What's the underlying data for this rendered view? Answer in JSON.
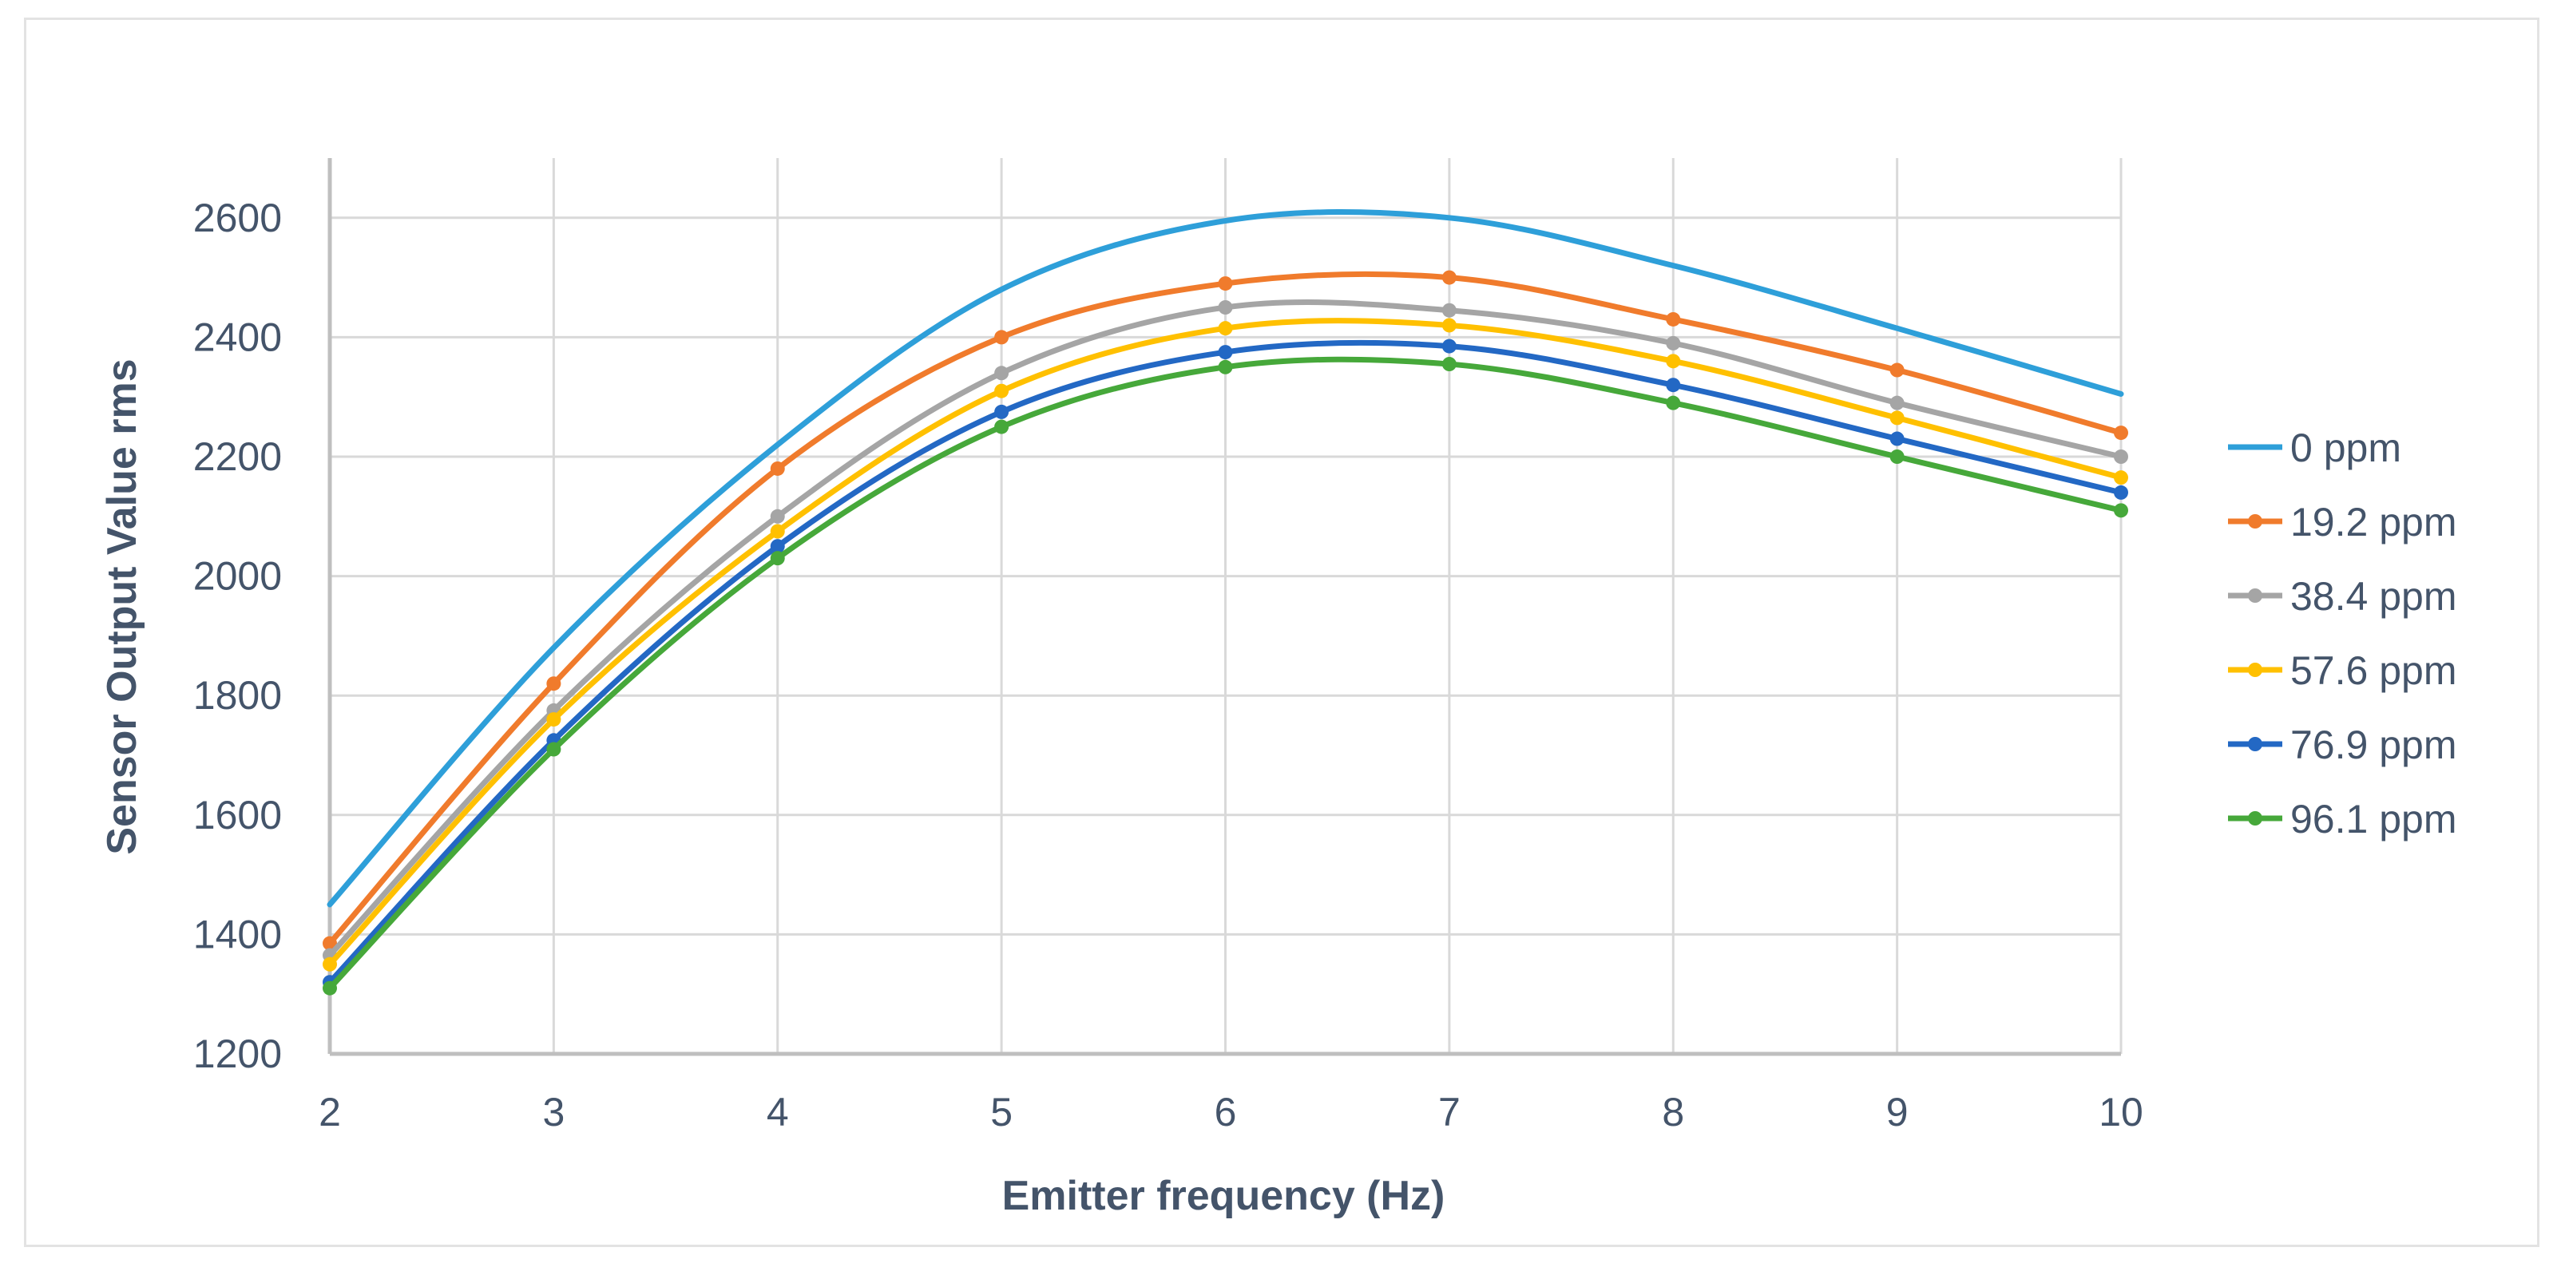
{
  "chart_data": {
    "type": "line",
    "title": "",
    "xlabel": "Emitter frequency (Hz)",
    "ylabel": "Sensor Output Value rms",
    "x": [
      2,
      3,
      4,
      5,
      6,
      7,
      8,
      9,
      10
    ],
    "xlim": [
      2,
      10
    ],
    "ylim": [
      1200,
      2600
    ],
    "yticks": [
      1200,
      1400,
      1600,
      1800,
      2000,
      2200,
      2400,
      2600
    ],
    "grid": true,
    "legend_position": "right",
    "series": [
      {
        "name": "0 ppm",
        "color": "#2e9fd9",
        "markers": false,
        "values": [
          1450,
          1880,
          2220,
          2480,
          2595,
          2600,
          2520,
          2415,
          2305
        ]
      },
      {
        "name": "19.2 ppm",
        "color": "#f07b2c",
        "markers": true,
        "values": [
          1385,
          1820,
          2180,
          2400,
          2490,
          2500,
          2430,
          2345,
          2240
        ]
      },
      {
        "name": "38.4 ppm",
        "color": "#a5a5a5",
        "markers": true,
        "values": [
          1365,
          1775,
          2100,
          2340,
          2450,
          2445,
          2390,
          2290,
          2200
        ]
      },
      {
        "name": "57.6 ppm",
        "color": "#ffc000",
        "markers": true,
        "values": [
          1350,
          1760,
          2075,
          2310,
          2415,
          2420,
          2360,
          2265,
          2165
        ]
      },
      {
        "name": "76.9 ppm",
        "color": "#2368c4",
        "markers": true,
        "values": [
          1320,
          1725,
          2050,
          2275,
          2375,
          2385,
          2320,
          2230,
          2140
        ]
      },
      {
        "name": "96.1 ppm",
        "color": "#46a83a",
        "markers": true,
        "values": [
          1310,
          1710,
          2030,
          2250,
          2350,
          2355,
          2290,
          2200,
          2110
        ]
      }
    ]
  }
}
